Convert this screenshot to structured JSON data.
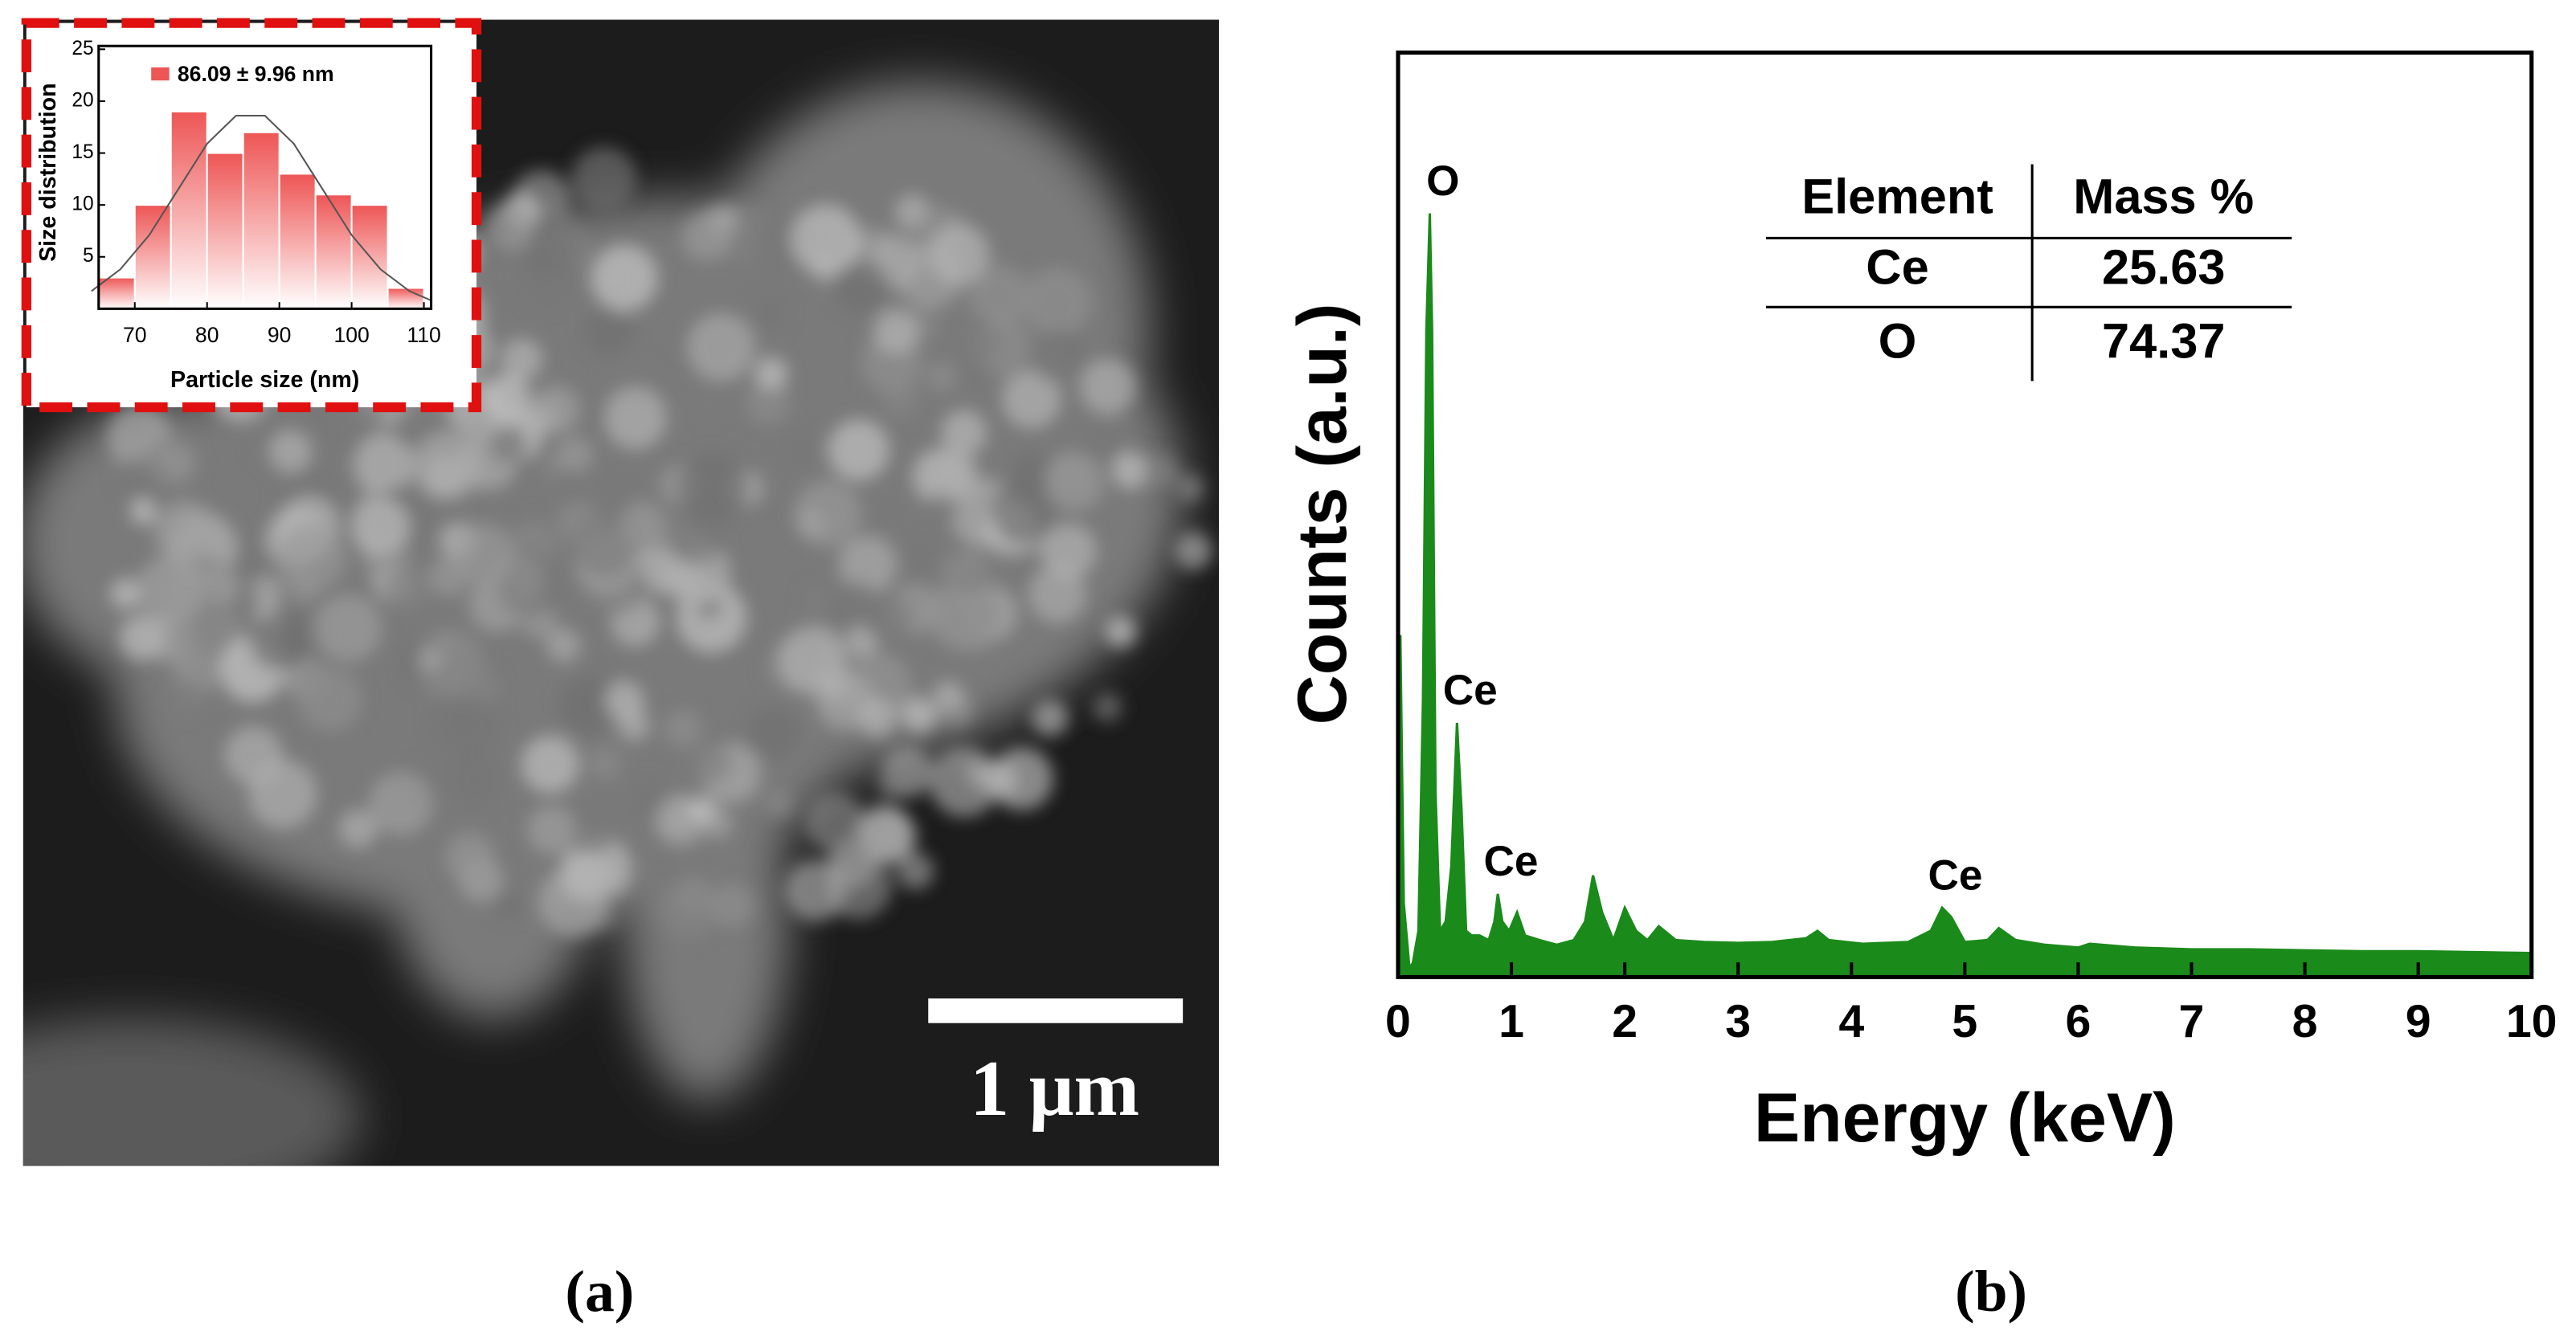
{
  "panels": [
    {
      "label": "(a)"
    },
    {
      "label": "(b)"
    }
  ],
  "scale_bar": "1 μm",
  "chart_data": [
    {
      "type": "histogram",
      "xlabel": "Particle size (nm)",
      "ylabel": "Size distribution",
      "bins": [
        65,
        70,
        75,
        80,
        85,
        90,
        95,
        100,
        105,
        110
      ],
      "series": [
        {
          "name": "86.09 ± 9.96 nm",
          "color": "#ee5555",
          "values": [
            3,
            10,
            19,
            15,
            17,
            13,
            11,
            10,
            2
          ]
        }
      ],
      "fit": {
        "color": "#555555",
        "x": [
          64,
          68,
          72,
          76,
          80,
          84,
          88,
          92,
          96,
          100,
          104,
          108,
          111
        ],
        "values": [
          1.7,
          3.8,
          7.1,
          11.5,
          15.9,
          18.6,
          18.6,
          15.9,
          11.5,
          7.1,
          3.8,
          1.7,
          0.8
        ]
      },
      "xlim": [
        65,
        111
      ],
      "xticks": [
        70,
        80,
        90,
        100,
        110
      ],
      "ylim": [
        0,
        25
      ],
      "yticks": [
        5,
        10,
        15,
        20,
        25
      ]
    },
    {
      "type": "area",
      "xlabel": "Energy (keV)",
      "ylabel": "Counts (a.u.)",
      "color": "#1a8a1a",
      "x": [
        0,
        0.02,
        0.05,
        0.1,
        0.13,
        0.18,
        0.22,
        0.25,
        0.28,
        0.3,
        0.33,
        0.37,
        0.42,
        0.47,
        0.52,
        0.56,
        0.6,
        0.65,
        0.72,
        0.8,
        0.85,
        0.88,
        0.92,
        0.98,
        1.05,
        1.12,
        1.25,
        1.4,
        1.55,
        1.65,
        1.72,
        1.8,
        1.9,
        2.0,
        2.1,
        2.2,
        2.3,
        2.45,
        2.7,
        3.0,
        3.3,
        3.6,
        3.7,
        3.8,
        4.1,
        4.5,
        4.7,
        4.8,
        4.88,
        5.0,
        5.2,
        5.3,
        5.45,
        5.7,
        6.0,
        6.1,
        6.5,
        7.0,
        7.5,
        8.0,
        8.5,
        9.0,
        9.5,
        10
      ],
      "values": [
        0,
        37,
        8,
        1,
        1.5,
        5,
        30,
        70,
        82.6,
        70,
        20,
        5,
        6,
        12,
        27.5,
        18,
        5,
        4.5,
        4.5,
        4,
        6,
        9,
        6,
        5,
        7,
        4.5,
        4,
        3.5,
        4,
        6,
        11,
        7,
        4,
        7.5,
        5,
        4,
        5.5,
        4,
        3.8,
        3.7,
        3.8,
        4.2,
        5,
        4,
        3.6,
        3.8,
        5,
        7.5,
        6.5,
        3.8,
        4,
        5.3,
        4,
        3.5,
        3.2,
        3.6,
        3.2,
        3,
        3,
        2.9,
        2.8,
        2.8,
        2.7,
        2.6
      ],
      "xlim": [
        0,
        10
      ],
      "xticks": [
        0,
        1,
        2,
        3,
        4,
        5,
        6,
        7,
        8,
        9,
        10
      ],
      "ylim": [
        0,
        100
      ],
      "annotations": [
        {
          "text": "O",
          "x": 0.28,
          "y": 82.6
        },
        {
          "text": "Ce",
          "x": 0.52,
          "y": 27.5
        },
        {
          "text": "Ce",
          "x": 0.88,
          "y": 9
        },
        {
          "text": "Ce",
          "x": 4.8,
          "y": 7.5
        }
      ],
      "table": {
        "header": [
          "Element",
          "Mass %"
        ],
        "rows": [
          [
            "Ce",
            25.63
          ],
          [
            "O",
            74.37
          ]
        ]
      }
    }
  ]
}
